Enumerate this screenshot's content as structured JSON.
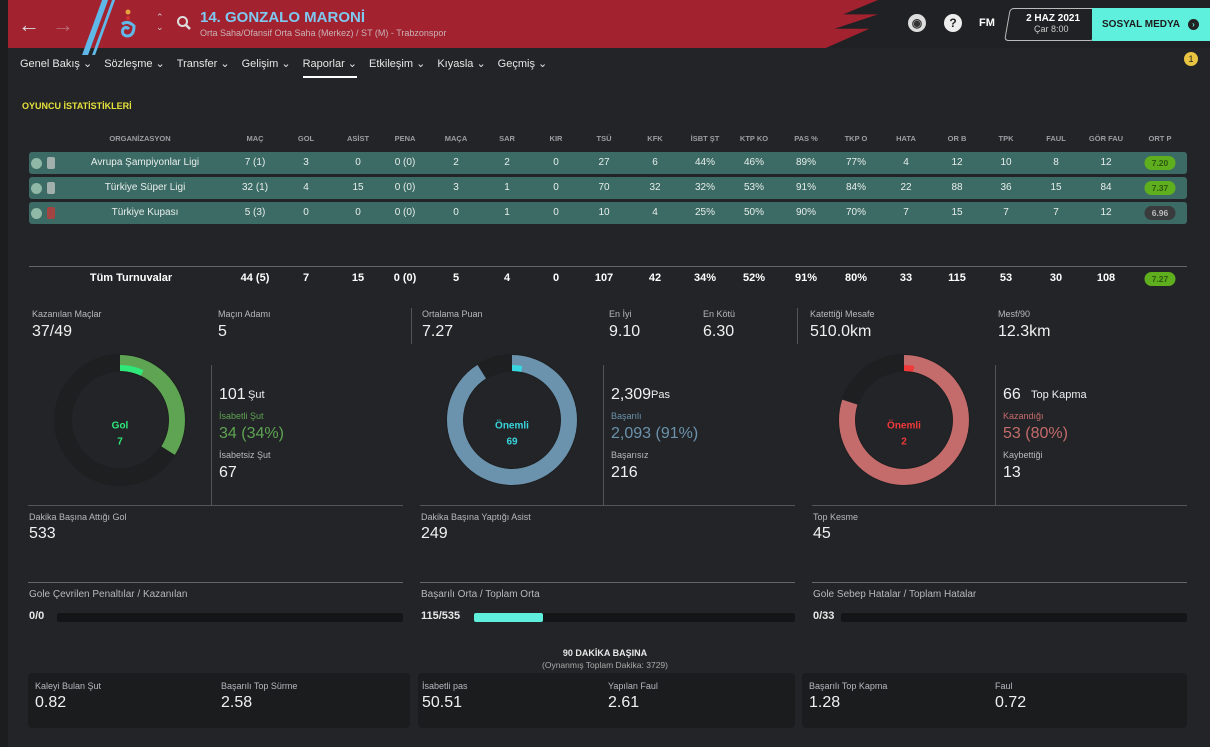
{
  "header": {
    "back": "←",
    "forward": "→",
    "title": "14. GONZALO MARONİ",
    "subtitle": "Orta Saha/Ofansif Orta Saha (Merkez) / ST (M) - Trabzonspor",
    "fm": "FM",
    "help": "?",
    "date": "2 HAZ 2021",
    "time": "Çar 8:00",
    "social": "SOSYAL MEDYA",
    "notification_count": "1"
  },
  "nav": [
    "Genel Bakış ⌄",
    "Sözleşme ⌄",
    "Transfer ⌄",
    "Gelişim ⌄",
    "Raporlar ⌄",
    "Etkileşim ⌄",
    "Kıyasla ⌄",
    "Geçmiş ⌄"
  ],
  "section_title": "OYUNCU İSTATİSTİKLERİ",
  "table": {
    "columns": [
      "ORGANİZASYON",
      "MAÇ",
      "GOL",
      "ASİST",
      "PENA",
      "MAÇA",
      "SAR",
      "KIR",
      "TSÜ",
      "KFK",
      "İSBT ŞT",
      "KTP KO",
      "PAS %",
      "TKP O",
      "HATA",
      "OR B",
      "TPK",
      "FAUL",
      "GÖR FAU",
      "ORT P"
    ],
    "rows": [
      [
        "Avrupa Şampiyonlar Ligi",
        "7 (1)",
        "3",
        "0",
        "0 (0)",
        "2",
        "2",
        "0",
        "27",
        "6",
        "44%",
        "46%",
        "89%",
        "77%",
        "4",
        "12",
        "10",
        "8",
        "12",
        "7.20"
      ],
      [
        "Türkiye Süper Ligi",
        "32 (1)",
        "4",
        "15",
        "0 (0)",
        "3",
        "1",
        "0",
        "70",
        "32",
        "32%",
        "53%",
        "91%",
        "84%",
        "22",
        "88",
        "36",
        "15",
        "84",
        "7.37"
      ],
      [
        "Türkiye Kupası",
        "5 (3)",
        "0",
        "0",
        "0 (0)",
        "0",
        "1",
        "0",
        "10",
        "4",
        "25%",
        "50%",
        "90%",
        "70%",
        "7",
        "15",
        "7",
        "7",
        "12",
        "6.96"
      ]
    ],
    "total": [
      "Tüm Turnuvalar",
      "44 (5)",
      "7",
      "15",
      "0 (0)",
      "5",
      "4",
      "0",
      "107",
      "42",
      "34%",
      "52%",
      "91%",
      "80%",
      "33",
      "115",
      "53",
      "30",
      "108",
      "7.27"
    ],
    "rating_colors": [
      "#5fae1e",
      "#5fae1e",
      "#3a3b3d"
    ],
    "total_rating_color": "#5fae1e"
  },
  "summary": [
    {
      "label": "Kazanılan Maçlar",
      "value": "37/49"
    },
    {
      "label": "Maçın Adamı",
      "value": "5"
    },
    {
      "label": "Ortalama Puan",
      "value": "7.27"
    },
    {
      "label": "En İyi",
      "value": "9.10"
    },
    {
      "label": "En Kötü",
      "value": "6.30"
    },
    {
      "label": "Katettiği Mesafe",
      "value": "510.0km"
    },
    {
      "label": "Mesf/90",
      "value": "12.3km"
    }
  ],
  "donuts": [
    {
      "center_label": "Gol",
      "center_value": "7",
      "total": "101",
      "total_label": "Şut",
      "a_label": "İsabetli Şut",
      "a_value": "34 (34%)",
      "b_label": "İsabetsiz Şut",
      "b_value": "67",
      "fraction": 0.34,
      "key_fraction": 0.07,
      "color": "#5ea453",
      "key_color": "#2fe87a",
      "a_color": "#5ea453",
      "below_label": "Dakika Başına Attığı Gol",
      "below_value": "533"
    },
    {
      "center_label": "Önemli",
      "center_value": "69",
      "total": "2,309",
      "total_label": "Pas",
      "a_label": "Başarılı",
      "a_value": "2,093 (91%)",
      "b_label": "Başarısız",
      "b_value": "216",
      "fraction": 0.91,
      "key_fraction": 0.03,
      "color": "#6b93ad",
      "key_color": "#38d6df",
      "a_color": "#6b93ad",
      "below_label": "Dakika Başına Yaptığı Asist",
      "below_value": "249"
    },
    {
      "center_label": "Önemli",
      "center_value": "2",
      "total": "66",
      "total_label": "Top Kapma",
      "a_label": "Kazandığı",
      "a_value": "53 (80%)",
      "b_label": "Kaybettiği",
      "b_value": "13",
      "fraction": 0.8,
      "key_fraction": 0.03,
      "color": "#c46b6b",
      "key_color": "#f03a3a",
      "a_color": "#c46b6b",
      "below_label": "Top Kesme",
      "below_value": "45"
    }
  ],
  "bars": [
    {
      "label": "Gole Çevrilen Penaltılar / Kazanılan",
      "value": "0/0",
      "fraction": 0
    },
    {
      "label": "Başarılı Orta / Toplam Orta",
      "value": "115/535",
      "fraction": 0.215
    },
    {
      "label": "Gole Sebep Hatalar / Toplam Hatalar",
      "value": "0/33",
      "fraction": 0
    }
  ],
  "per90": {
    "title": "90 DAKİKA BAŞINA",
    "subtitle": "(Oynanmış Toplam Dakika: 3729)",
    "items": [
      {
        "label": "Kaleyi Bulan Şut",
        "value": "0.82"
      },
      {
        "label": "Başarılı Top Sürme",
        "value": "2.58"
      },
      {
        "label": "İsabetli pas",
        "value": "50.51"
      },
      {
        "label": "Yapılan Faul",
        "value": "2.61"
      },
      {
        "label": "Başarılı Top Kapma",
        "value": "1.28"
      },
      {
        "label": "Faul",
        "value": "0.72"
      }
    ]
  }
}
